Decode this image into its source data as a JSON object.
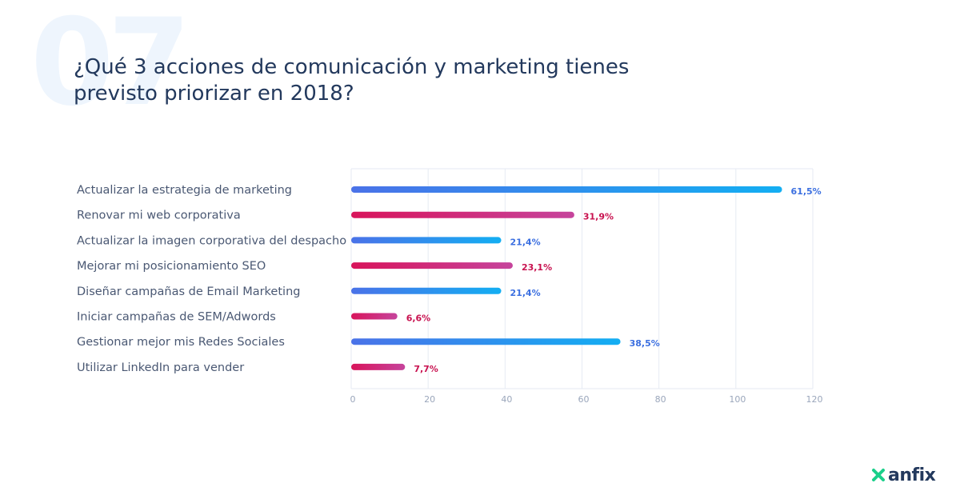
{
  "bg_number": "07",
  "title": "¿Qué 3 acciones de comunicación y marketing tienes previsto priorizar en 2018?",
  "brand": {
    "name": "anfix",
    "accent": "#1bcf8a",
    "text_color": "#23395d"
  },
  "colors": {
    "blue_start": "#4a72e8",
    "blue_end": "#13aef2",
    "blue_label": "#3b6fe0",
    "pink_start": "#d8145b",
    "pink_end": "#c6449c",
    "pink_label": "#c8114f",
    "category_text": "#4a5873",
    "grid": "#e6eaf3",
    "tick_text": "#9aa6bb"
  },
  "chart_data": {
    "type": "bar",
    "orientation": "horizontal",
    "categories": [
      "Actualizar la estrategia de marketing",
      "Renovar mi web corporativa",
      "Actualizar la imagen corporativa del despacho",
      "Mejorar mi posicionamiento SEO",
      "Diseñar campañas de Email Marketing",
      "Iniciar campañas de SEM/Adwords",
      "Gestionar mejor mis Redes Sociales",
      "Utilizar LinkedIn para vender"
    ],
    "values": [
      112,
      58,
      39,
      42,
      39,
      12,
      70,
      14
    ],
    "data_labels": [
      "61,5%",
      "31,9%",
      "21,4%",
      "23,1%",
      "21,4%",
      "6,6%",
      "38,5%",
      "7,7%"
    ],
    "bar_colors": [
      "blue",
      "pink",
      "blue",
      "pink",
      "blue",
      "pink",
      "blue",
      "pink"
    ],
    "xlim": [
      0,
      120
    ],
    "xticks": [
      0,
      20,
      40,
      60,
      80,
      100,
      120
    ],
    "grid": true
  }
}
